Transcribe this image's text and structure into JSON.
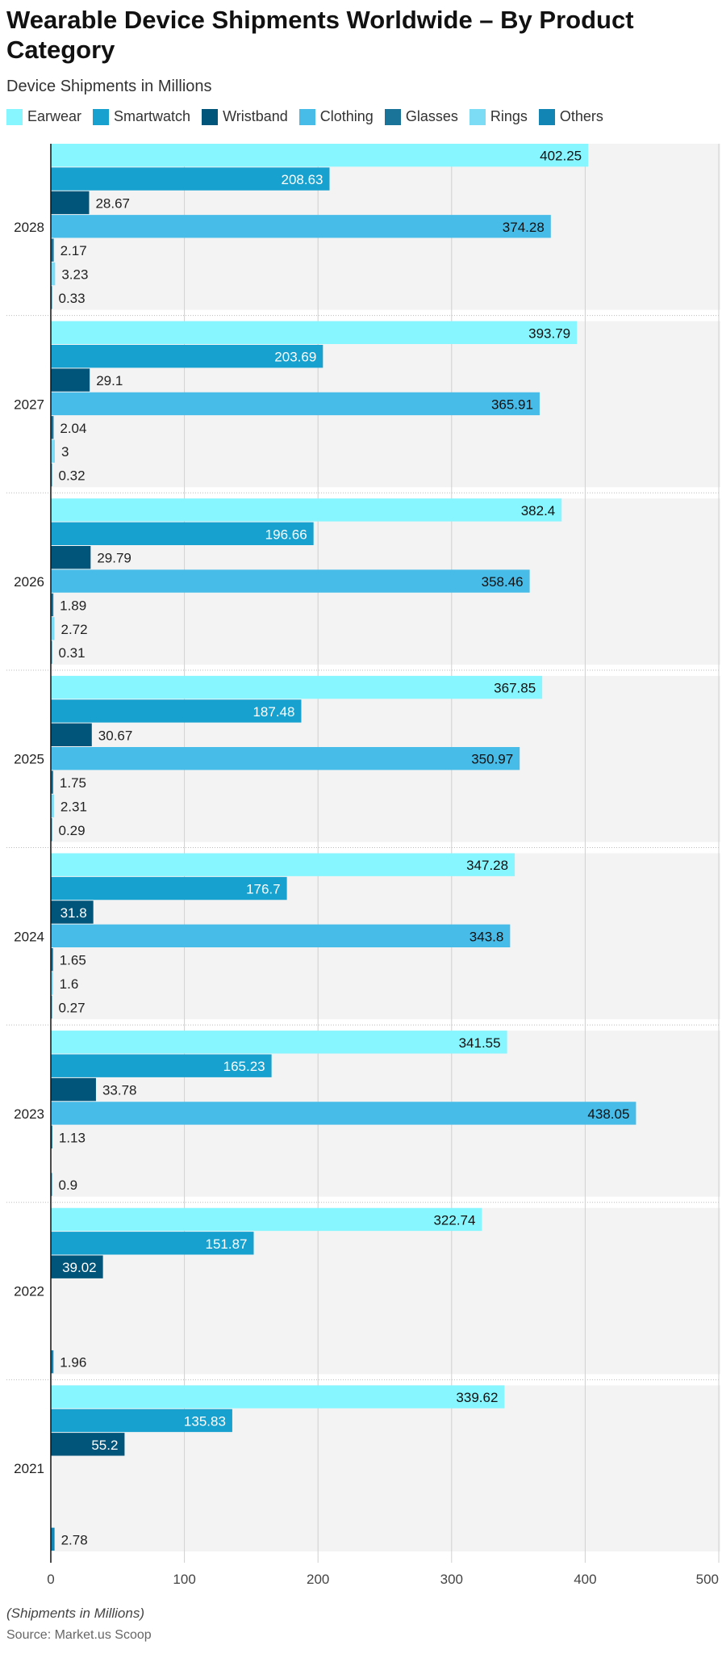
{
  "chart_data": {
    "type": "bar",
    "orientation": "horizontal",
    "title": "Wearable Device Shipments Worldwide – By Product Category",
    "subtitle": "Device Shipments in Millions",
    "categories": [
      "2028",
      "2027",
      "2026",
      "2025",
      "2024",
      "2023",
      "2022",
      "2021"
    ],
    "series": [
      {
        "name": "Earwear",
        "color": "#88F6FF",
        "values": [
          402.25,
          393.79,
          382.4,
          367.85,
          347.28,
          341.55,
          322.74,
          339.62
        ]
      },
      {
        "name": "Smartwatch",
        "color": "#17A1CF",
        "values": [
          208.63,
          203.69,
          196.66,
          187.48,
          176.7,
          165.23,
          151.87,
          135.83
        ]
      },
      {
        "name": "Wristband",
        "color": "#01557A",
        "values": [
          28.67,
          29.1,
          29.79,
          30.67,
          31.8,
          33.78,
          39.02,
          55.2
        ]
      },
      {
        "name": "Clothing",
        "color": "#48BCE8",
        "values": [
          374.28,
          365.91,
          358.46,
          350.97,
          343.8,
          438.05,
          null,
          null
        ]
      },
      {
        "name": "Glasses",
        "color": "#1A7399",
        "values": [
          2.17,
          2.04,
          1.89,
          1.75,
          1.65,
          1.13,
          null,
          null
        ]
      },
      {
        "name": "Rings",
        "color": "#7DDCF5",
        "values": [
          3.23,
          3,
          2.72,
          2.31,
          1.6,
          null,
          null,
          null
        ]
      },
      {
        "name": "Others",
        "color": "#1285B5",
        "values": [
          0.33,
          0.32,
          0.31,
          0.29,
          0.27,
          0.9,
          1.96,
          2.78
        ]
      }
    ],
    "xlim": [
      0,
      500
    ],
    "xticks": [
      0,
      100,
      200,
      300,
      400,
      500
    ],
    "grid": true,
    "legend_position": "top-left",
    "xlabel": "",
    "ylabel": "",
    "footnote": "(Shipments in Millions)",
    "source": "Source: Market.us Scoop"
  }
}
